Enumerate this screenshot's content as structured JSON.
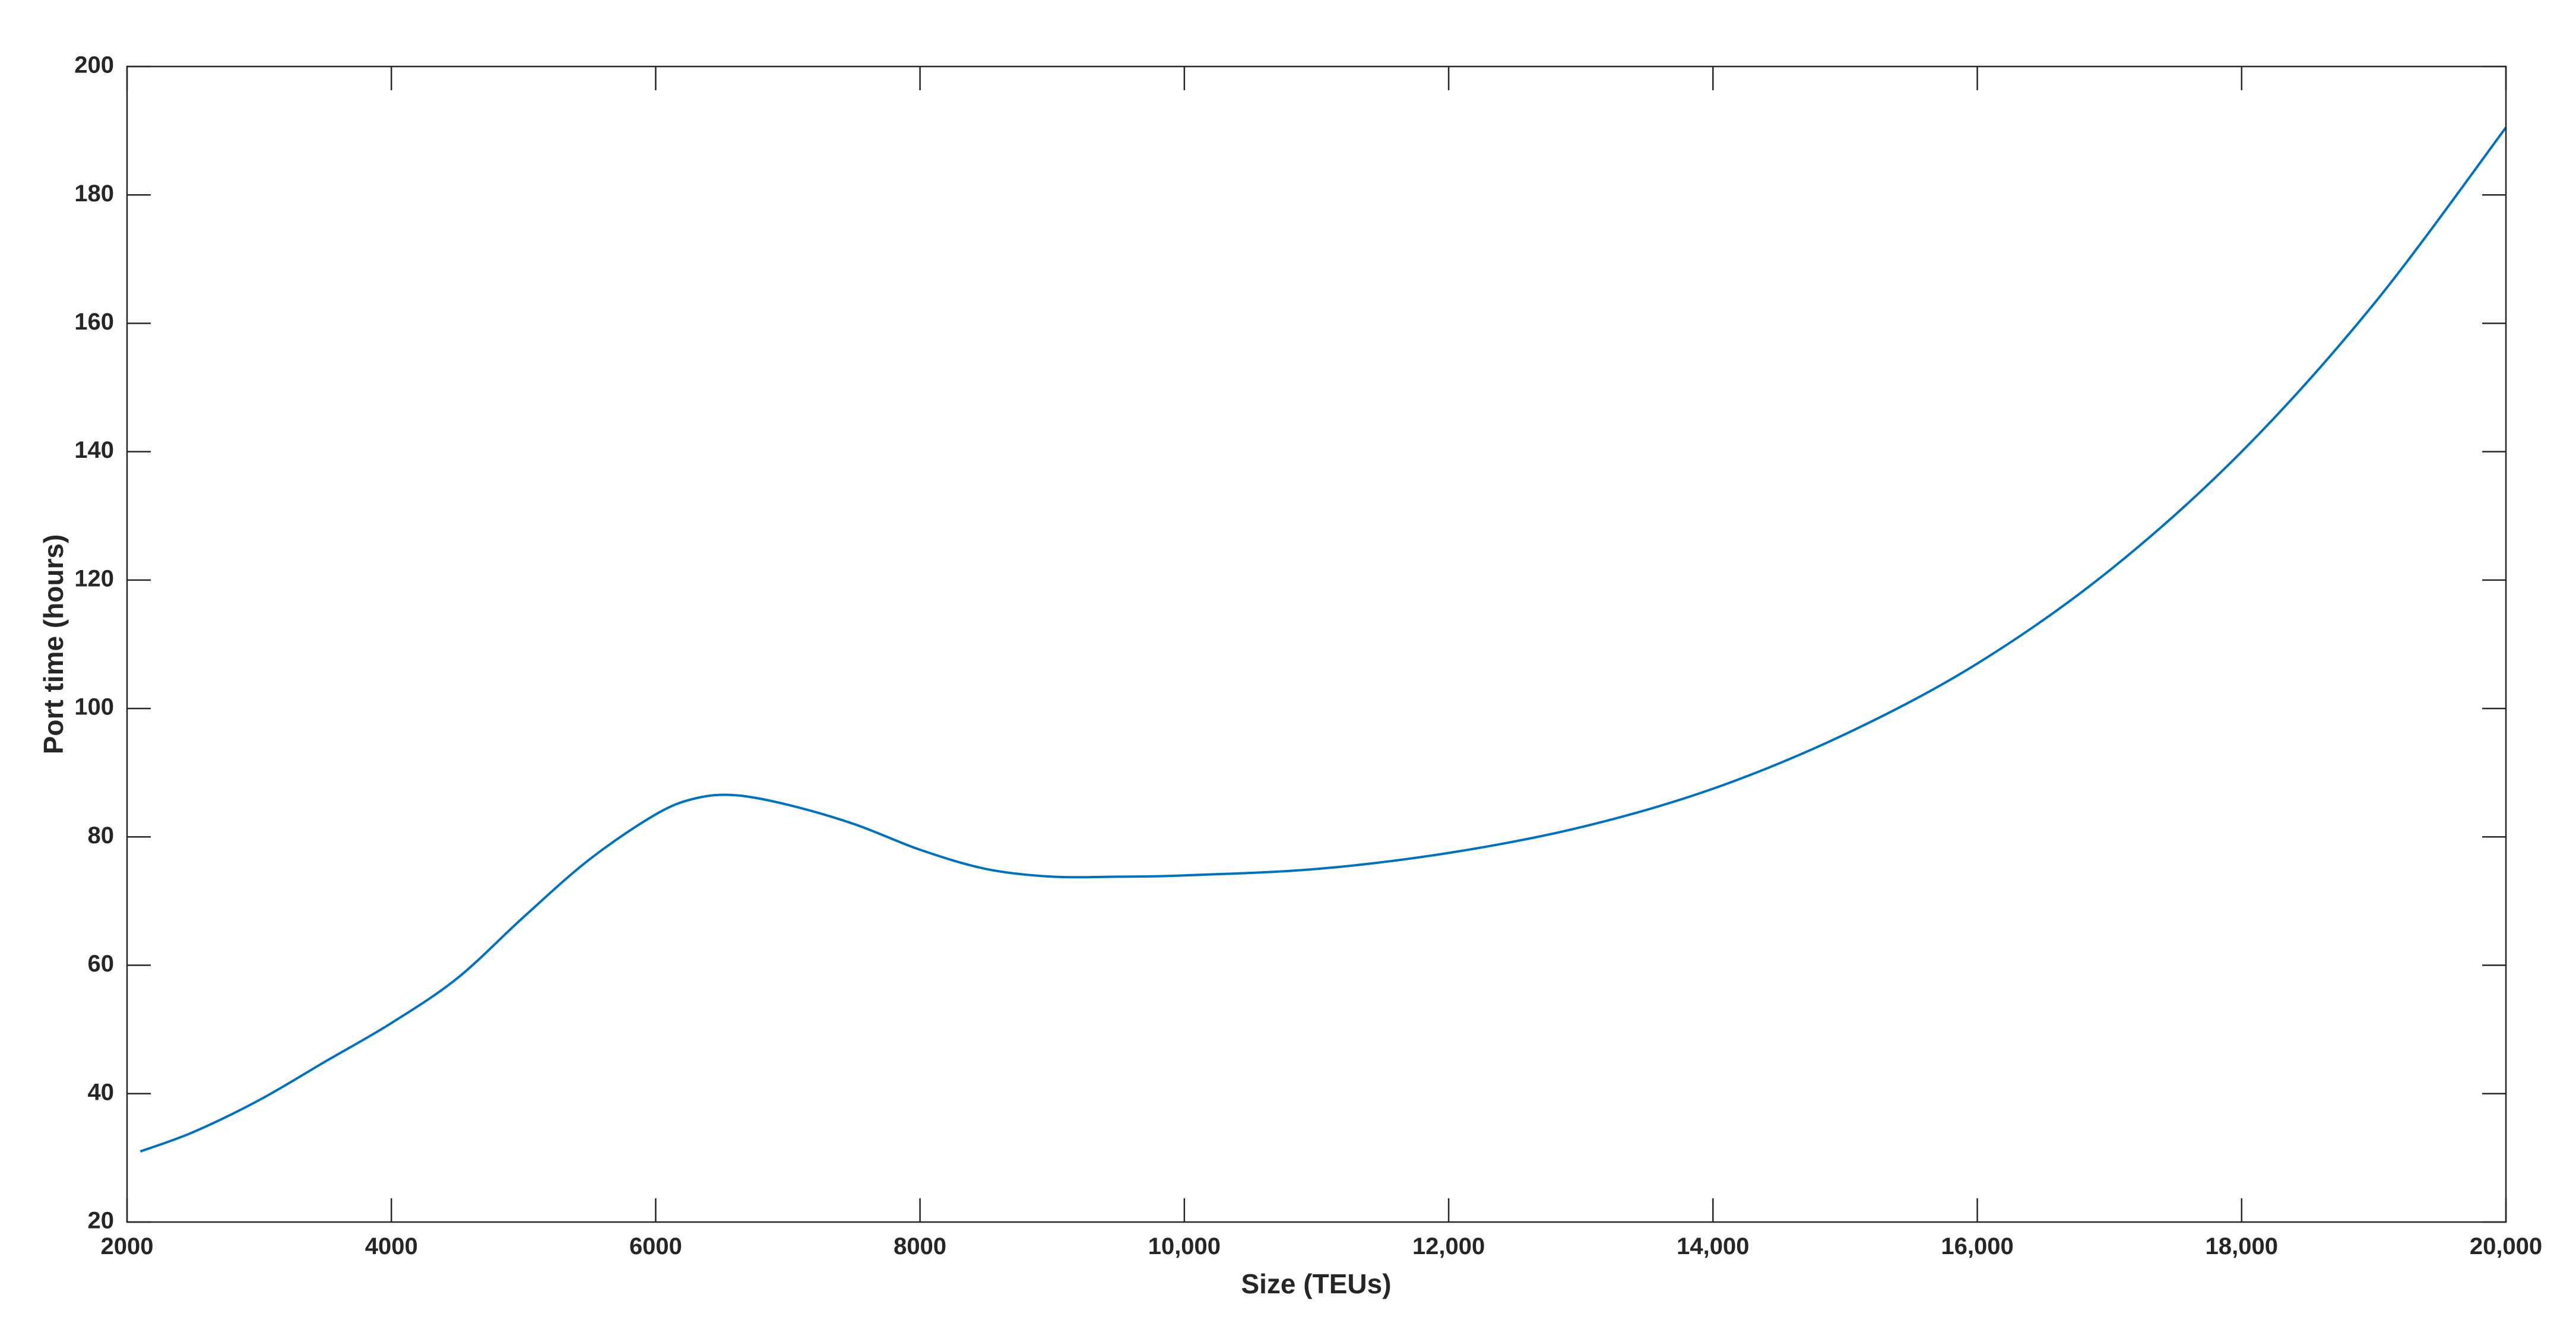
{
  "chart_data": {
    "type": "line",
    "title": "",
    "xlabel": "Size (TEUs)",
    "ylabel": "Port time (hours)",
    "xlim": [
      2000,
      20000
    ],
    "ylim": [
      20,
      200
    ],
    "x_ticks": [
      2000,
      4000,
      6000,
      8000,
      10000,
      12000,
      14000,
      16000,
      18000,
      20000
    ],
    "x_tick_labels": [
      "2000",
      "4000",
      "6000",
      "8000",
      "10,000",
      "12,000",
      "14,000",
      "16,000",
      "18,000",
      "20,000"
    ],
    "y_ticks": [
      20,
      40,
      60,
      80,
      100,
      120,
      140,
      160,
      180,
      200
    ],
    "y_tick_labels": [
      "20",
      "40",
      "60",
      "80",
      "100",
      "120",
      "140",
      "160",
      "180",
      "200"
    ],
    "grid": false,
    "line_color": "#0072BD",
    "series": [
      {
        "x": [
          2100,
          2500,
          3000,
          3500,
          4000,
          4500,
          5000,
          5500,
          6000,
          6300,
          6600,
          7000,
          7500,
          8000,
          8500,
          9000,
          9500,
          10000,
          11000,
          12000,
          13000,
          14000,
          15000,
          16000,
          17000,
          18000,
          19000,
          20000
        ],
        "y": [
          31.0,
          34.0,
          39.0,
          45.0,
          51.0,
          58.0,
          67.5,
          76.5,
          83.5,
          86.0,
          86.5,
          85.0,
          82.0,
          78.0,
          75.0,
          73.8,
          73.8,
          74.0,
          75.0,
          77.5,
          81.5,
          87.5,
          96.0,
          107.0,
          121.5,
          140.0,
          163.0,
          190.5
        ]
      }
    ]
  }
}
